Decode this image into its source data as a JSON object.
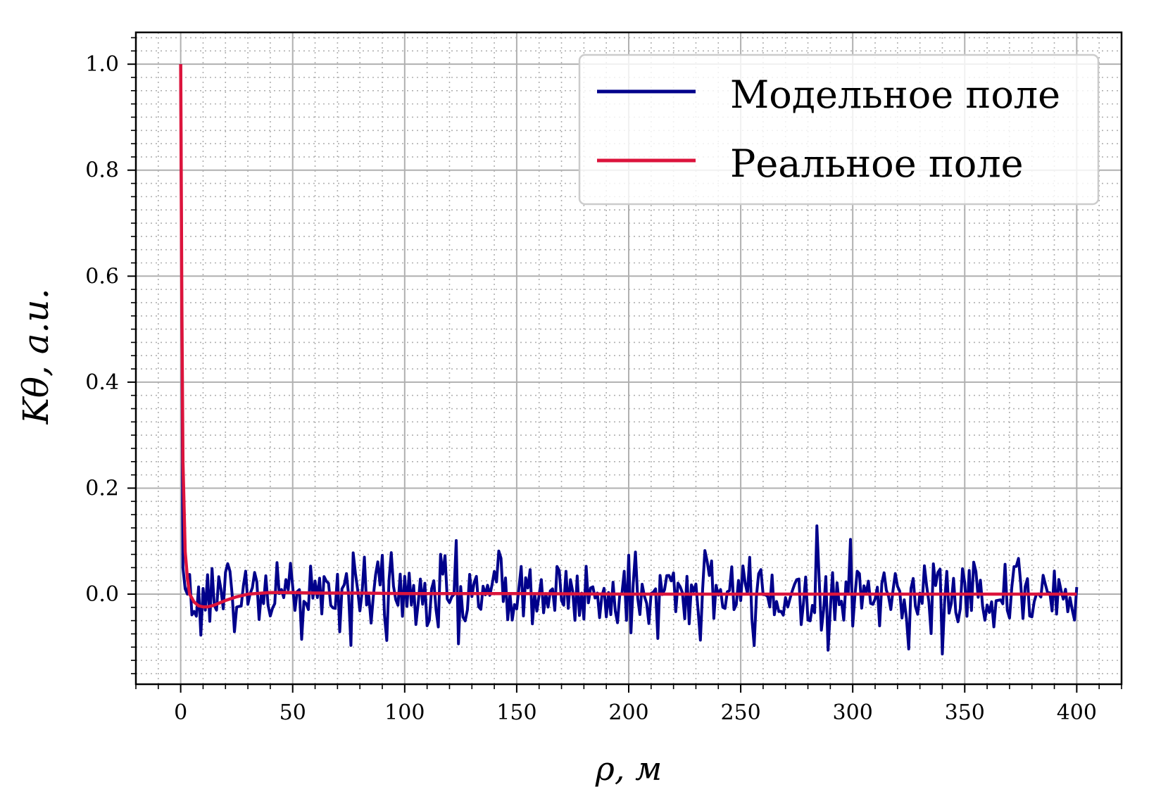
{
  "chart_data": {
    "type": "line",
    "xlabel": "ρ, м",
    "ylabel": "Kθ, a.u.",
    "xlim": [
      -20,
      420
    ],
    "ylim": [
      -0.17,
      1.06
    ],
    "xticks": [
      0,
      50,
      100,
      150,
      200,
      250,
      300,
      350,
      400
    ],
    "xtick_labels": [
      "0",
      "50",
      "100",
      "150",
      "200",
      "250",
      "300",
      "350",
      "400"
    ],
    "yticks": [
      0.0,
      0.2,
      0.4,
      0.6,
      0.8,
      1.0
    ],
    "ytick_labels": [
      "0.0",
      "0.2",
      "0.4",
      "0.6",
      "0.8",
      "1.0"
    ],
    "grid": {
      "major": true,
      "minor": true,
      "minor_style": "dotted"
    },
    "legend": "top-right",
    "series": [
      {
        "name": "Модельное поле",
        "color": "#00008b",
        "x_start": 0,
        "x_step": 1,
        "n_points": 401,
        "initial": [
          [
            0,
            1.0
          ],
          [
            1,
            0.05
          ],
          [
            2,
            0.01
          ],
          [
            3,
            0.0
          ]
        ],
        "noise_std": 0.04,
        "noise_range": [
          -0.12,
          0.13
        ]
      },
      {
        "name": "Реальное поле",
        "color": "#dc143c",
        "x": [
          0,
          0.5,
          1,
          2,
          3,
          4,
          6,
          8,
          10,
          12,
          14,
          16,
          20,
          25,
          30,
          40,
          50,
          60,
          80,
          100,
          150,
          200,
          250,
          300,
          350,
          400
        ],
        "y": [
          1.0,
          0.55,
          0.25,
          0.08,
          0.03,
          0.0,
          -0.015,
          -0.022,
          -0.024,
          -0.024,
          -0.022,
          -0.019,
          -0.012,
          -0.005,
          0.0,
          0.003,
          0.003,
          0.002,
          0.002,
          0.001,
          0.001,
          0.0,
          0.0,
          0.0,
          0.0,
          0.0
        ]
      }
    ]
  }
}
